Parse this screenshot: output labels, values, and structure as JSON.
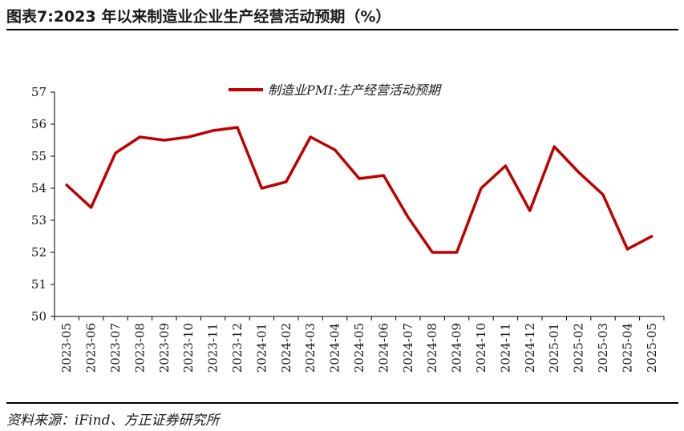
{
  "figure": {
    "title": "图表7:2023 年以来制造业企业生产经营活动预期（%）",
    "source": "资料来源：iFind、方正证券研究所"
  },
  "chart_data": {
    "type": "line",
    "title": "",
    "xlabel": "",
    "ylabel": "",
    "ylim": [
      50,
      57
    ],
    "yticks": [
      "50",
      "51",
      "52",
      "53",
      "54",
      "55",
      "56",
      "57"
    ],
    "grid": false,
    "legend_position": "top-center",
    "categories": [
      "2023-05",
      "2023-06",
      "2023-07",
      "2023-08",
      "2023-09",
      "2023-10",
      "2023-11",
      "2023-12",
      "2024-01",
      "2024-02",
      "2024-03",
      "2024-04",
      "2024-05",
      "2024-06",
      "2024-07",
      "2024-08",
      "2024-09",
      "2024-10",
      "2024-11",
      "2024-12",
      "2025-01",
      "2025-02",
      "2025-03",
      "2025-04",
      "2025-05"
    ],
    "series": [
      {
        "name": "制造业PMI:生产经营活动预期",
        "color": "#c00000",
        "values": [
          54.1,
          53.4,
          55.1,
          55.6,
          55.5,
          55.6,
          55.8,
          55.9,
          54.0,
          54.2,
          55.6,
          55.2,
          54.3,
          54.4,
          53.1,
          52.0,
          52.0,
          54.0,
          54.7,
          53.3,
          55.3,
          54.5,
          53.8,
          52.1,
          52.5
        ]
      }
    ]
  }
}
